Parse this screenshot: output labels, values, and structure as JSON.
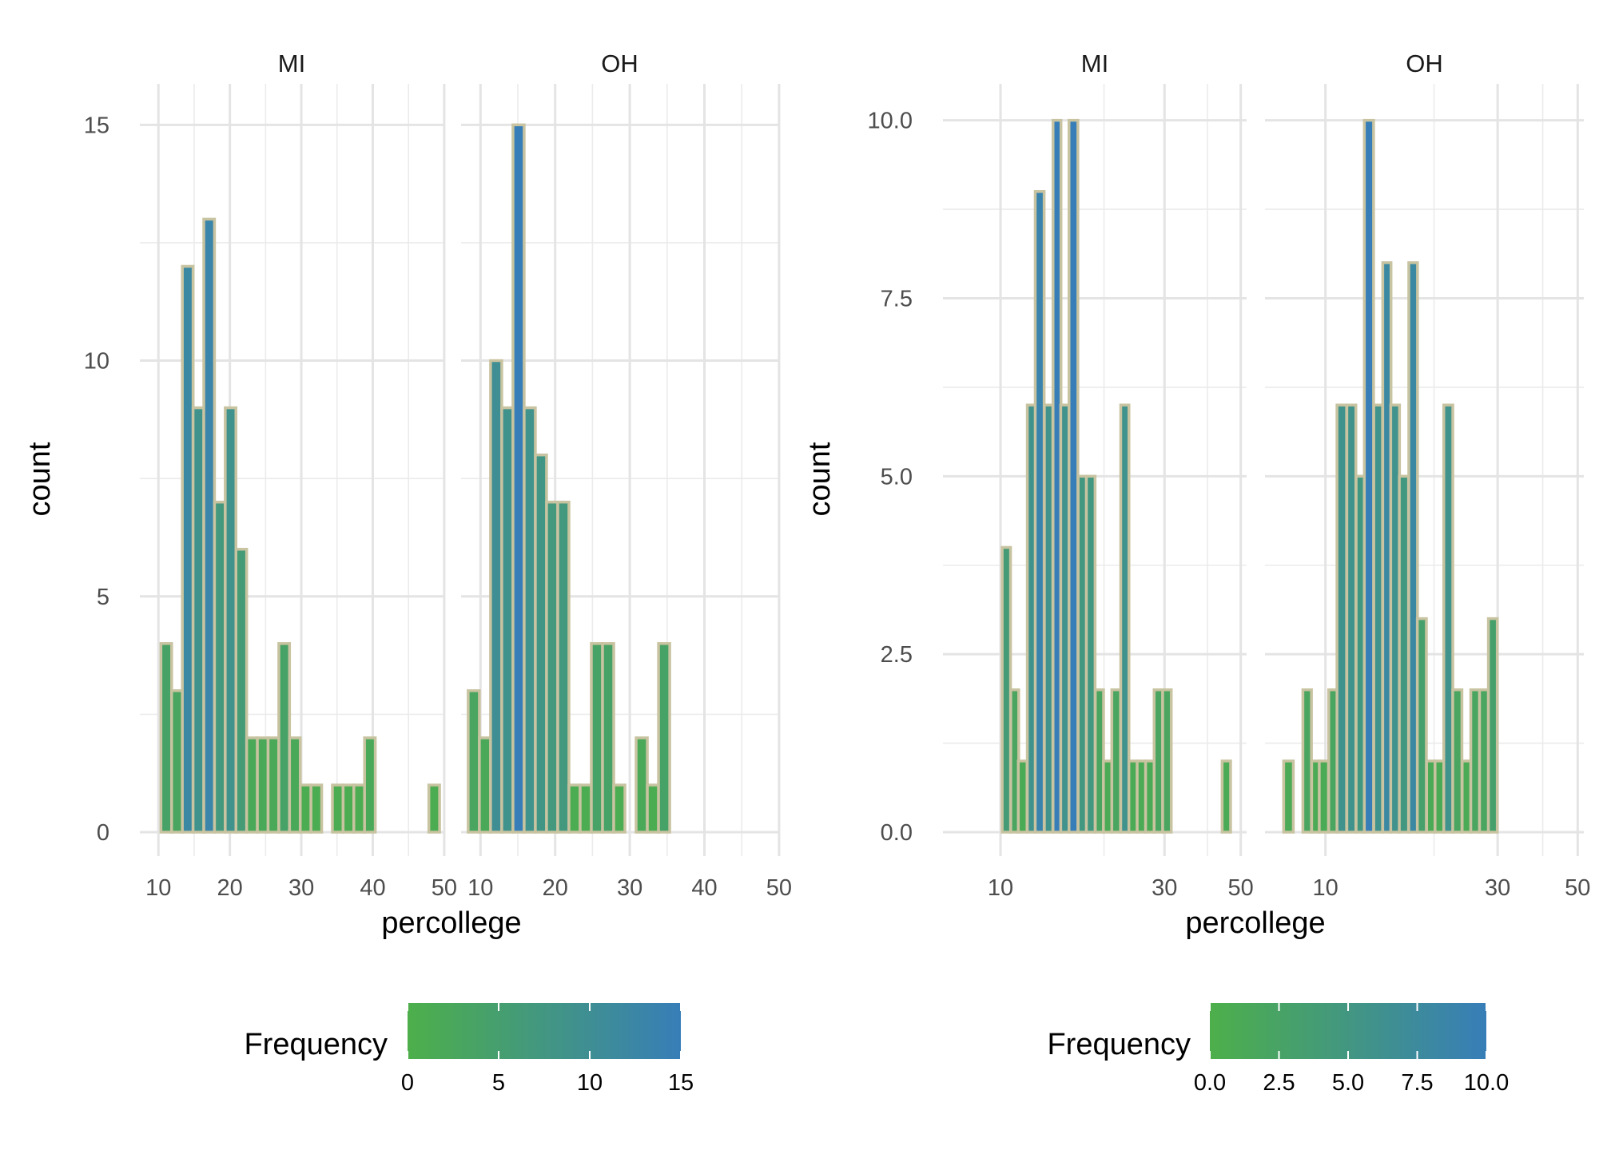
{
  "chart_data": [
    {
      "type": "histogram",
      "scale": "linear",
      "facets": [
        {
          "name": "MI",
          "bins": [
            {
              "x": 9.1,
              "count": 0
            },
            {
              "x": 11.1,
              "count": 4
            },
            {
              "x": 12.6,
              "count": 3
            },
            {
              "x": 14.1,
              "count": 12
            },
            {
              "x": 15.6,
              "count": 9
            },
            {
              "x": 17.1,
              "count": 13
            },
            {
              "x": 18.6,
              "count": 7
            },
            {
              "x": 20.1,
              "count": 9
            },
            {
              "x": 21.6,
              "count": 6
            },
            {
              "x": 23.1,
              "count": 2
            },
            {
              "x": 24.6,
              "count": 2
            },
            {
              "x": 26.1,
              "count": 2
            },
            {
              "x": 27.6,
              "count": 4
            },
            {
              "x": 29.1,
              "count": 2
            },
            {
              "x": 30.6,
              "count": 1
            },
            {
              "x": 32.1,
              "count": 1
            },
            {
              "x": 33.6,
              "count": 0
            },
            {
              "x": 35.1,
              "count": 1
            },
            {
              "x": 36.6,
              "count": 1
            },
            {
              "x": 38.1,
              "count": 1
            },
            {
              "x": 39.6,
              "count": 2
            },
            {
              "x": 41.1,
              "count": 0
            },
            {
              "x": 42.6,
              "count": 0
            },
            {
              "x": 44.1,
              "count": 0
            },
            {
              "x": 45.6,
              "count": 0
            },
            {
              "x": 47.1,
              "count": 0
            },
            {
              "x": 48.6,
              "count": 1
            }
          ]
        },
        {
          "name": "OH",
          "bins": [
            {
              "x": 9.1,
              "count": 3
            },
            {
              "x": 10.6,
              "count": 2
            },
            {
              "x": 12.1,
              "count": 10
            },
            {
              "x": 13.6,
              "count": 9
            },
            {
              "x": 15.1,
              "count": 15
            },
            {
              "x": 16.6,
              "count": 9
            },
            {
              "x": 18.1,
              "count": 8
            },
            {
              "x": 19.6,
              "count": 7
            },
            {
              "x": 21.1,
              "count": 7
            },
            {
              "x": 22.6,
              "count": 1
            },
            {
              "x": 24.1,
              "count": 1
            },
            {
              "x": 25.6,
              "count": 4
            },
            {
              "x": 27.1,
              "count": 4
            },
            {
              "x": 28.6,
              "count": 1
            },
            {
              "x": 30.1,
              "count": 0
            },
            {
              "x": 31.6,
              "count": 2
            },
            {
              "x": 33.1,
              "count": 1
            },
            {
              "x": 34.6,
              "count": 4
            },
            {
              "x": 36.1,
              "count": 0
            },
            {
              "x": 37.6,
              "count": 0
            },
            {
              "x": 39.1,
              "count": 0
            },
            {
              "x": 40.6,
              "count": 0
            },
            {
              "x": 42.1,
              "count": 0
            },
            {
              "x": 43.6,
              "count": 0
            },
            {
              "x": 45.1,
              "count": 0
            },
            {
              "x": 46.6,
              "count": 0
            },
            {
              "x": 48.1,
              "count": 0
            }
          ]
        }
      ],
      "x_range": [
        7.4,
        49.9
      ],
      "y_range": [
        0,
        15.7
      ],
      "x_ticks": [
        10,
        20,
        30,
        40,
        50
      ],
      "y_ticks": [
        0,
        5,
        10,
        15
      ],
      "xlabel": "percollege",
      "ylabel": "count",
      "legend": {
        "title": "Frequency",
        "min": 0,
        "max": 15,
        "ticks": [
          0,
          5,
          10,
          15
        ],
        "labels": [
          "0",
          "5",
          "10",
          "15"
        ],
        "color_low": "#4daf4a",
        "color_high": "#377eb8"
      },
      "bar_outline": "#c8c3a0",
      "grid": true,
      "legend_position": "bottom"
    },
    {
      "type": "histogram",
      "scale": "log10",
      "facets": [
        {
          "name": "MI",
          "bins": [
            {
              "x": 10.4,
              "count": 4
            },
            {
              "x": 11.0,
              "count": 2
            },
            {
              "x": 11.6,
              "count": 1
            },
            {
              "x": 12.3,
              "count": 6
            },
            {
              "x": 13.0,
              "count": 9
            },
            {
              "x": 13.8,
              "count": 6
            },
            {
              "x": 14.6,
              "count": 10
            },
            {
              "x": 15.4,
              "count": 6
            },
            {
              "x": 16.3,
              "count": 10
            },
            {
              "x": 17.3,
              "count": 5
            },
            {
              "x": 18.3,
              "count": 5
            },
            {
              "x": 19.4,
              "count": 2
            },
            {
              "x": 20.5,
              "count": 1
            },
            {
              "x": 21.7,
              "count": 2
            },
            {
              "x": 23.0,
              "count": 6
            },
            {
              "x": 24.3,
              "count": 1
            },
            {
              "x": 25.7,
              "count": 1
            },
            {
              "x": 27.2,
              "count": 1
            },
            {
              "x": 28.8,
              "count": 2
            },
            {
              "x": 30.5,
              "count": 2
            },
            {
              "x": 32.3,
              "count": 0
            },
            {
              "x": 34.2,
              "count": 0
            },
            {
              "x": 36.2,
              "count": 0
            },
            {
              "x": 38.3,
              "count": 0
            },
            {
              "x": 40.5,
              "count": 0
            },
            {
              "x": 42.9,
              "count": 0
            },
            {
              "x": 45.4,
              "count": 1
            }
          ]
        },
        {
          "name": "OH",
          "bins": [
            {
              "x": 7.9,
              "count": 1
            },
            {
              "x": 8.4,
              "count": 0
            },
            {
              "x": 8.9,
              "count": 2
            },
            {
              "x": 9.4,
              "count": 1
            },
            {
              "x": 9.9,
              "count": 1
            },
            {
              "x": 10.5,
              "count": 2
            },
            {
              "x": 11.1,
              "count": 6
            },
            {
              "x": 11.8,
              "count": 6
            },
            {
              "x": 12.5,
              "count": 5
            },
            {
              "x": 13.2,
              "count": 10
            },
            {
              "x": 14.0,
              "count": 6
            },
            {
              "x": 14.8,
              "count": 8
            },
            {
              "x": 15.6,
              "count": 6
            },
            {
              "x": 16.5,
              "count": 5
            },
            {
              "x": 17.5,
              "count": 8
            },
            {
              "x": 18.5,
              "count": 3
            },
            {
              "x": 19.6,
              "count": 1
            },
            {
              "x": 20.7,
              "count": 1
            },
            {
              "x": 21.9,
              "count": 6
            },
            {
              "x": 23.2,
              "count": 2
            },
            {
              "x": 24.6,
              "count": 1
            },
            {
              "x": 26.0,
              "count": 2
            },
            {
              "x": 27.5,
              "count": 2
            },
            {
              "x": 29.1,
              "count": 3
            }
          ]
        }
      ],
      "x_range": [
        6.8,
        52
      ],
      "y_range": [
        0,
        10.4
      ],
      "x_ticks": [
        10,
        30,
        50
      ],
      "y_ticks": [
        0,
        2.5,
        5,
        7.5,
        10
      ],
      "y_tick_labels": [
        "0.0",
        "2.5",
        "5.0",
        "7.5",
        "10.0"
      ],
      "xlabel": "percollege",
      "ylabel": "count",
      "legend": {
        "title": "Frequency",
        "min": 0,
        "max": 10,
        "ticks": [
          0,
          2.5,
          5,
          7.5,
          10
        ],
        "labels": [
          "0.0",
          "2.5",
          "5.0",
          "7.5",
          "10.0"
        ],
        "color_low": "#4daf4a",
        "color_high": "#377eb8"
      },
      "bar_outline": "#c8c3a0",
      "grid": true,
      "legend_position": "bottom"
    }
  ]
}
